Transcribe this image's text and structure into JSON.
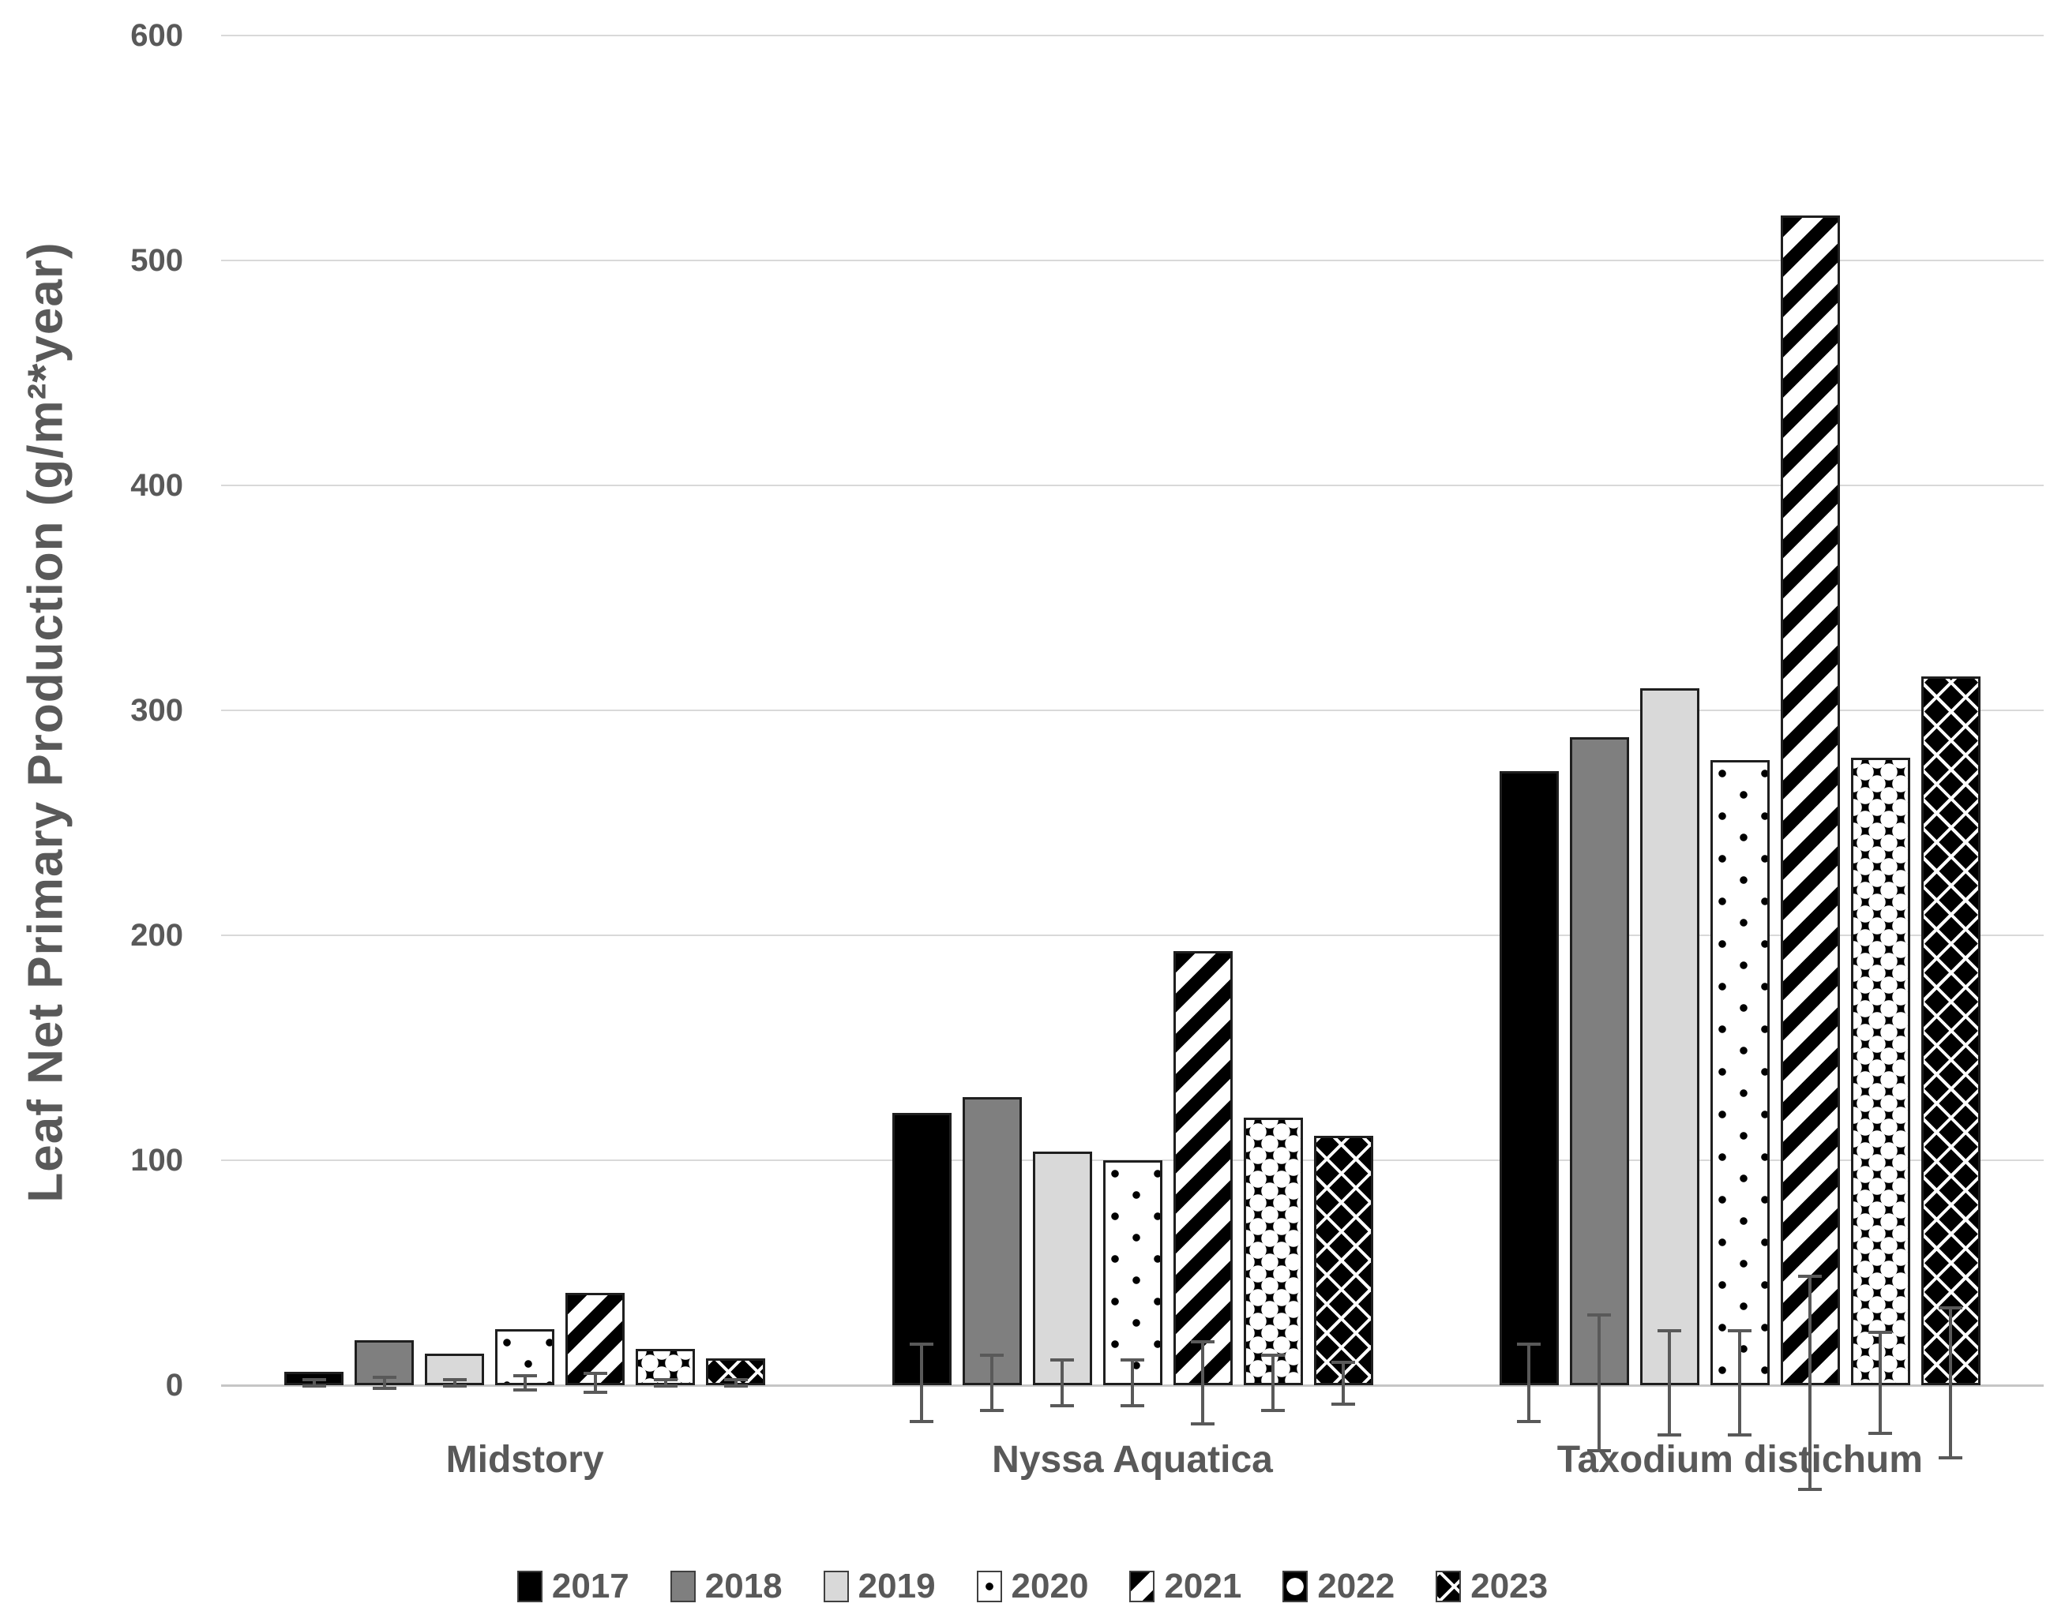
{
  "chart_data": {
    "type": "bar",
    "title": "",
    "xlabel": "",
    "ylabel": "Leaf Net Primary Production (g/m²*year)",
    "ylim": [
      0,
      600
    ],
    "yticks": [
      0,
      100,
      200,
      300,
      400,
      500,
      600
    ],
    "grid": true,
    "legend_position": "bottom",
    "error_bars": true,
    "categories": [
      "Midstory",
      "Nyssa Aquatica",
      "Taxodium distichum"
    ],
    "series": [
      {
        "name": "2017",
        "pattern": "solid-black",
        "values": [
          6,
          121,
          273
        ],
        "errors": [
          2,
          18,
          18
        ]
      },
      {
        "name": "2018",
        "pattern": "solid-dark-gray",
        "values": [
          20,
          128,
          288
        ],
        "errors": [
          3,
          13,
          31
        ]
      },
      {
        "name": "2019",
        "pattern": "solid-light-gray",
        "values": [
          14,
          104,
          310
        ],
        "errors": [
          2,
          11,
          24
        ]
      },
      {
        "name": "2020",
        "pattern": "black-dots-on-white",
        "values": [
          25,
          100,
          278
        ],
        "errors": [
          4,
          11,
          24
        ]
      },
      {
        "name": "2021",
        "pattern": "black-diagonal-stripes",
        "values": [
          41,
          193,
          520
        ],
        "errors": [
          5,
          19,
          48
        ]
      },
      {
        "name": "2022",
        "pattern": "white-circles-on-black",
        "values": [
          16,
          119,
          279
        ],
        "errors": [
          2,
          13,
          23
        ]
      },
      {
        "name": "2023",
        "pattern": "white-lattice-on-black",
        "values": [
          12,
          111,
          315
        ],
        "errors": [
          2,
          10,
          34
        ]
      }
    ],
    "colors": {
      "text": "#595959",
      "gridline": "#d9d9d9",
      "axis_line": "#c6c6c6",
      "bar_black": "#000000",
      "bar_dark_gray": "#7f7f7f",
      "bar_light_gray": "#d9d9d9",
      "error_bar": "#595959"
    }
  }
}
